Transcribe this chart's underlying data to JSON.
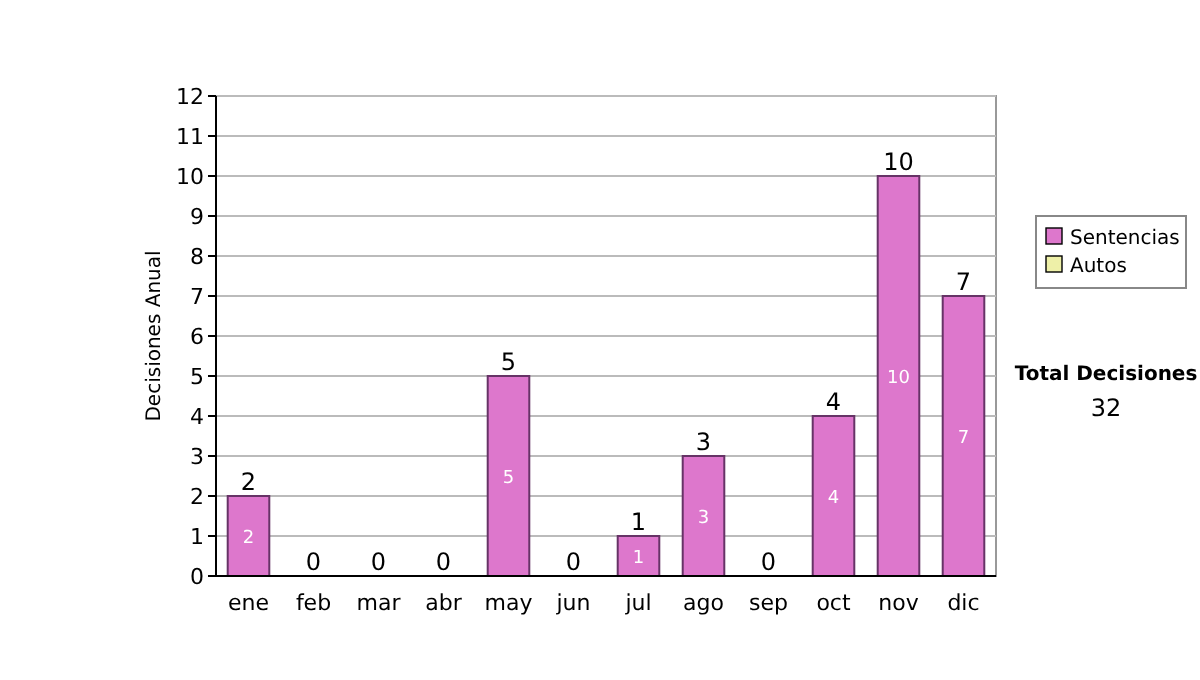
{
  "chart_data": {
    "type": "bar",
    "stacked": true,
    "ylabel": "Decisiones Anual",
    "categories": [
      "ene",
      "feb",
      "mar",
      "abr",
      "may",
      "jun",
      "jul",
      "ago",
      "sep",
      "oct",
      "nov",
      "dic"
    ],
    "series": [
      {
        "name": "Sentencias",
        "color": "#dd77cc",
        "values": [
          2,
          0,
          0,
          0,
          5,
          0,
          1,
          3,
          0,
          4,
          10,
          7
        ],
        "value_labels": [
          "2",
          null,
          null,
          null,
          "5",
          null,
          "1",
          "3",
          null,
          "4",
          "10",
          "7"
        ]
      },
      {
        "name": "Autos",
        "color": "#eef0a8",
        "values": [
          0,
          0,
          0,
          0,
          0,
          0,
          0,
          0,
          0,
          0,
          0,
          0
        ]
      }
    ],
    "totals": [
      "2",
      "0",
      "0",
      "0",
      "5",
      "0",
      "1",
      "3",
      "0",
      "4",
      "10",
      "7"
    ],
    "ylim": [
      0,
      12
    ],
    "yticks": [
      0,
      1,
      2,
      3,
      4,
      5,
      6,
      7,
      8,
      9,
      10,
      11,
      12
    ],
    "grid": "y",
    "legend": "right",
    "annotations": [
      "Total Decisiones",
      "32"
    ]
  }
}
